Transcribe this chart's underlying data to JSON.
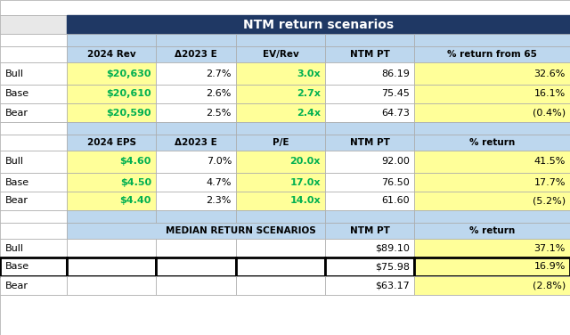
{
  "title": "NTM return scenarios",
  "title_bg": "#1f3864",
  "title_color": "#ffffff",
  "header_bg": "#bdd7ee",
  "yellow_bg": "#ffff99",
  "white_bg": "#ffffff",
  "green_color": "#00b050",
  "black_color": "#000000",
  "gray_bg": "#e8e8e8",
  "section1_headers": [
    "2024 Rev",
    "Δ2023 E",
    "EV/Rev",
    "NTM PT",
    "% return from 65"
  ],
  "section2_headers": [
    "2024 EPS",
    "Δ2023 E",
    "P/E",
    "NTM PT",
    "% return"
  ],
  "section3_header_left": "MEDIAN RETURN SCENARIOS",
  "section3_header_ntm": "NTM PT",
  "section3_header_ret": "% return",
  "section1_rows": [
    [
      "Bull",
      "$20,630",
      "2.7%",
      "3.0x",
      "86.19",
      "32.6%"
    ],
    [
      "Base",
      "$20,610",
      "2.6%",
      "2.7x",
      "75.45",
      "16.1%"
    ],
    [
      "Bear",
      "$20,590",
      "2.5%",
      "2.4x",
      "64.73",
      "(0.4%)"
    ]
  ],
  "section2_rows": [
    [
      "Bull",
      "$4.60",
      "7.0%",
      "20.0x",
      "92.00",
      "41.5%"
    ],
    [
      "Base",
      "$4.50",
      "4.7%",
      "17.0x",
      "76.50",
      "17.7%"
    ],
    [
      "Bear",
      "$4.40",
      "2.3%",
      "14.0x",
      "61.60",
      "(5.2%)"
    ]
  ],
  "section3_rows": [
    [
      "Bull",
      "$89.10",
      "37.1%"
    ],
    [
      "Base",
      "$75.98",
      "16.9%"
    ],
    [
      "Bear",
      "$63.17",
      "(2.8%)"
    ]
  ],
  "figsize": [
    6.4,
    3.76
  ]
}
